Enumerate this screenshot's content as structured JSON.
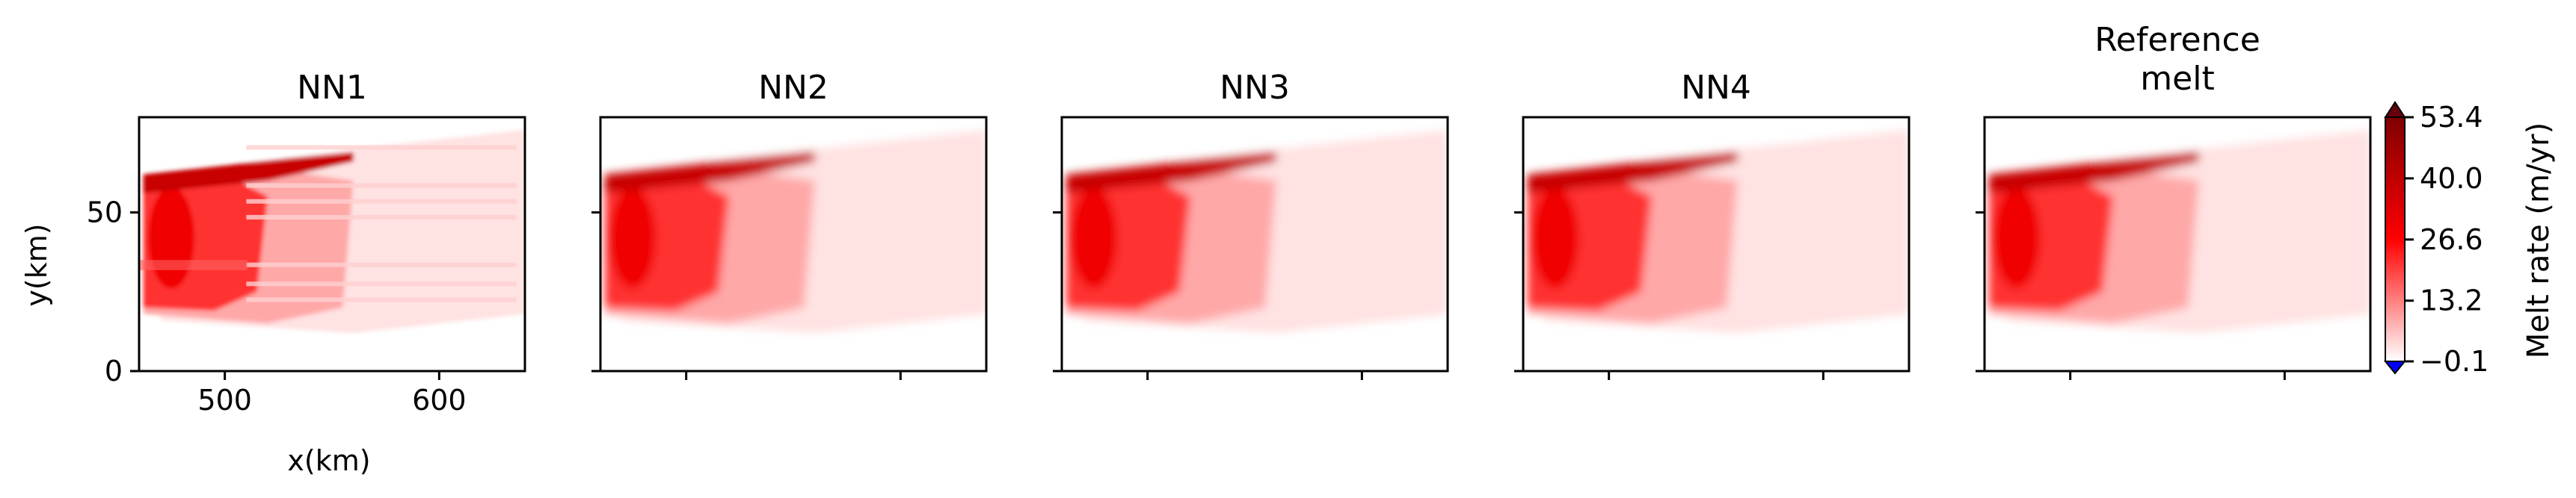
{
  "chart_data": {
    "type": "heatmap",
    "panels": [
      {
        "title": "NN1",
        "style": "blocky"
      },
      {
        "title": "NN2",
        "style": "smooth"
      },
      {
        "title": "NN3",
        "style": "smooth"
      },
      {
        "title": "NN4",
        "style": "smooth"
      },
      {
        "title": "Reference melt",
        "title_lines": [
          "Reference",
          "melt"
        ],
        "style": "reference"
      }
    ],
    "xlabel": "x(km)",
    "ylabel": "y(km)",
    "xlim": [
      460,
      640
    ],
    "ylim": [
      0,
      80
    ],
    "xticks": [
      500,
      600
    ],
    "yticks": [
      0,
      50
    ],
    "colorbar": {
      "label": "Melt rate (m/yr)",
      "min": -0.1,
      "max": 53.4,
      "ticks": [
        "53.4",
        "40.0",
        "26.6",
        "13.2",
        "−0.1"
      ],
      "tick_values": [
        53.4,
        40.0,
        26.6,
        13.2,
        -0.1
      ],
      "extend": "both",
      "over_color": "#67000d",
      "under_color": "#0000ff",
      "colors": [
        "#ffffff",
        "#ff0000",
        "#800000"
      ]
    },
    "field": {
      "description_values": "Melt concentrated near grounding line (x≈460-520 km, y≈18-60 km), peak along northern edge y≈55-60 km",
      "peak": 53.4
    }
  }
}
